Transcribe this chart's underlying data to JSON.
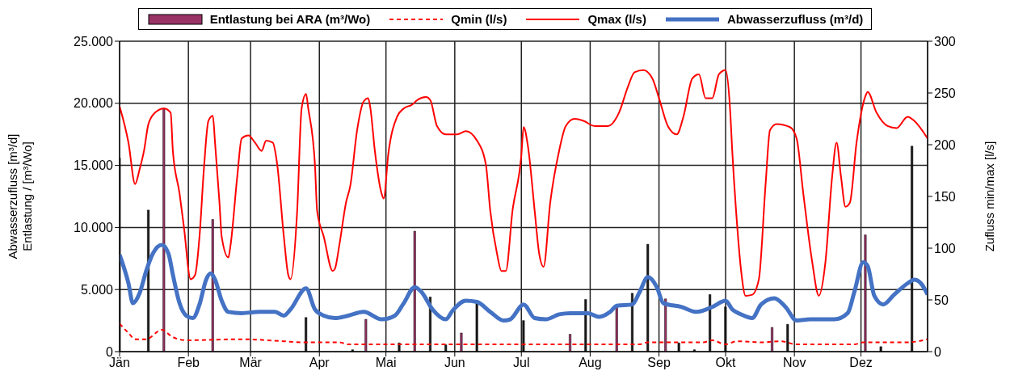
{
  "chart_data": {
    "type": "line",
    "ylabel": "Abwasserzufluss [m³/d]\nEntlastung / [m³/Wo]",
    "y2label": "Zufluss min/max [l/s]",
    "xlim": [
      "--01-01",
      "--12-31"
    ],
    "xticks": [
      {
        "value": "--01-01",
        "label": "Jän"
      },
      {
        "value": "--02-01",
        "label": "Feb"
      },
      {
        "value": "--03-01",
        "label": "Mär"
      },
      {
        "value": "--04-01",
        "label": "Apr"
      },
      {
        "value": "--05-01",
        "label": "Mai"
      },
      {
        "value": "--06-01",
        "label": "Jun"
      },
      {
        "value": "--07-01",
        "label": "Jul"
      },
      {
        "value": "--08-01",
        "label": "Aug"
      },
      {
        "value": "--09-01",
        "label": "Sep"
      },
      {
        "value": "--10-01",
        "label": "Okt"
      },
      {
        "value": "--11-01",
        "label": "Nov"
      },
      {
        "value": "--12-01",
        "label": "Dez"
      }
    ],
    "ylim": [
      0,
      25000
    ],
    "yticks": [
      0,
      {
        "value": 5000,
        "label": "5.000"
      },
      {
        "value": 10000,
        "label": "10.000"
      },
      {
        "value": 15000,
        "label": "15.000"
      },
      {
        "value": 20000,
        "label": "20.000"
      },
      {
        "value": 25000,
        "label": "25.000"
      }
    ],
    "y2lim": [
      0,
      300
    ],
    "y2ticks": [
      0,
      50,
      100,
      150,
      200,
      250,
      300
    ],
    "grid": true,
    "legend": "top",
    "marker": "none",
    "series": [
      {
        "type": "bar",
        "name": "Entlastung bei ARA (m³/Wo)",
        "color": "#993366",
        "x": [
          "--01-01",
          "--01-14",
          "--01-21",
          "--02-12",
          "--03-26",
          "--04-16",
          "--04-22",
          "--05-07",
          "--05-14",
          "--05-21",
          "--05-28",
          "--06-04",
          "--06-11",
          "--07-02",
          "--07-23",
          "--07-30",
          "--08-13",
          "--08-20",
          "--08-27",
          "--09-04",
          "--09-10",
          "--09-17",
          "--09-24",
          "--10-01",
          "--10-22",
          "--10-29",
          "--12-03",
          "--12-10",
          "--12-24"
        ],
        "values": [
          15600,
          11400,
          19600,
          10650,
          2750,
          150,
          2600,
          700,
          9700,
          4400,
          550,
          1500,
          3900,
          2500,
          1400,
          4200,
          3600,
          4700,
          8650,
          4250,
          700,
          150,
          4600,
          3600,
          1950,
          2200,
          9400,
          400,
          16550
        ],
        "colors": [
          "#1a1a1a",
          "#1a1a1a",
          "#993366",
          "#993366",
          "#1a1a1a",
          "#1a1a1a",
          "#993366",
          "#1a1a1a",
          "#993366",
          "#1a1a1a",
          "#1a1a1a",
          "#993366",
          "#1a1a1a",
          "#1a1a1a",
          "#993366",
          "#1a1a1a",
          "#993366",
          "#1a1a1a",
          "#1a1a1a",
          "#993366",
          "#1a1a1a",
          "#1a1a1a",
          "#1a1a1a",
          "#1a1a1a",
          "#993366",
          "#1a1a1a",
          "#993366",
          "#1a1a1a",
          "#1a1a1a"
        ]
      },
      {
        "name": "Qmin (l/s)",
        "color": "#ff0000",
        "line_style": "dashed",
        "axis": "y2",
        "x": [
          "--01-01",
          "--01-05",
          "--01-08",
          "--01-13",
          "--01-20",
          "--01-25",
          "--01-31",
          "--02-25",
          "--03-16",
          "--03-24",
          "--04-10",
          "--04-14",
          "--05-02",
          "--05-31",
          "--06-15",
          "--07-21",
          "--08-23",
          "--08-27",
          "--09-21",
          "--09-25",
          "--10-01",
          "--10-06",
          "--10-17",
          "--10-26",
          "--11-02",
          "--11-28",
          "--12-02",
          "--12-22",
          "--12-31"
        ],
        "values": [
          27,
          18,
          12,
          12,
          21,
          14,
          11,
          12,
          10,
          9,
          9,
          7,
          7,
          7,
          7,
          7,
          7,
          9,
          9,
          11,
          7,
          10,
          9,
          10,
          7,
          7,
          9,
          9,
          12
        ]
      },
      {
        "name": "Qmax (l/s)",
        "color": "#ff0000",
        "line_style": "solid",
        "axis": "y2",
        "x": [
          "--01-01",
          "--01-05",
          "--01-08",
          "--01-10",
          "--01-12",
          "--01-14",
          "--01-17",
          "--01-21",
          "--01-24",
          "--01-25",
          "--01-28",
          "--01-30",
          "--02-02",
          "--02-04",
          "--02-06",
          "--02-08",
          "--02-10",
          "--02-12",
          "--02-13",
          "--02-15",
          "--02-16",
          "--02-19",
          "--02-20",
          "--02-23",
          "--02-25",
          "--02-28",
          "--03-03",
          "--03-06",
          "--03-08",
          "--03-11",
          "--03-13",
          "--03-16",
          "--03-18",
          "--03-19",
          "--03-22",
          "--03-24",
          "--03-26",
          "--03-27",
          "--03-30",
          "--03-31",
          "--04-03",
          "--04-07",
          "--04-08",
          "--04-10",
          "--04-13",
          "--04-15",
          "--04-18",
          "--04-21",
          "--04-23",
          "--04-24",
          "--04-26",
          "--04-29",
          "--04-30",
          "--05-02",
          "--05-06",
          "--05-09",
          "--05-13",
          "--05-15",
          "--05-19",
          "--05-21",
          "--05-24",
          "--05-28",
          "--06-02",
          "--06-06",
          "--06-11",
          "--06-15",
          "--06-17",
          "--06-20",
          "--06-22",
          "--06-24",
          "--06-27",
          "--07-01",
          "--07-02",
          "--07-04",
          "--07-07",
          "--07-09",
          "--07-11",
          "--07-14",
          "--07-18",
          "--07-21",
          "--07-25",
          "--07-29",
          "--08-03",
          "--08-09",
          "--08-14",
          "--08-18",
          "--08-21",
          "--08-25",
          "--08-29",
          "--09-01",
          "--09-05",
          "--09-09",
          "--09-12",
          "--09-16",
          "--09-19",
          "--09-22",
          "--09-25",
          "--09-28",
          "--10-01",
          "--10-03",
          "--10-04",
          "--10-06",
          "--10-08",
          "--10-10",
          "--10-13",
          "--10-16",
          "--10-19",
          "--10-21",
          "--10-24",
          "--10-30",
          "--11-02",
          "--11-05",
          "--11-09",
          "--11-12",
          "--11-15",
          "--11-18",
          "--11-20",
          "--11-22",
          "--11-24",
          "--11-26",
          "--11-29",
          "--12-03",
          "--12-04",
          "--12-08",
          "--12-13",
          "--12-17",
          "--12-22",
          "--12-25",
          "--12-31"
        ],
        "values": [
          237,
          202,
          162,
          176,
          194,
          220,
          231,
          235,
          231,
          194,
          153,
          120,
          70,
          74,
          111,
          177,
          223,
          228,
          202,
          144,
          111,
          91,
          103,
          169,
          206,
          209,
          202,
          194,
          204,
          202,
          181,
          111,
          74,
          70,
          136,
          235,
          249,
          235,
          181,
          136,
          111,
          78,
          80,
          103,
          144,
          161,
          214,
          242,
          245,
          235,
          194,
          153,
          148,
          190,
          227,
          235,
          239,
          243,
          246,
          243,
          218,
          210,
          210,
          213,
          204,
          181,
          136,
          95,
          78,
          78,
          136,
          190,
          217,
          198,
          136,
          95,
          82,
          144,
          194,
          218,
          225,
          223,
          218,
          218,
          231,
          256,
          270,
          272,
          264,
          245,
          218,
          210,
          227,
          264,
          268,
          245,
          245,
          268,
          272,
          235,
          194,
          128,
          78,
          54,
          55,
          70,
          161,
          214,
          220,
          217,
          206,
          153,
          87,
          54,
          87,
          169,
          202,
          169,
          140,
          144,
          202,
          247,
          251,
          231,
          218,
          216,
          227,
          223,
          206
        ]
      },
      {
        "name": "Abwasserzufluss (m³/d)",
        "color": "#4472c4",
        "line_style": "solid",
        "x": [
          "--01-01",
          "--01-05",
          "--01-07",
          "--01-10",
          "--01-13",
          "--01-16",
          "--01-20",
          "--01-23",
          "--01-25",
          "--01-28",
          "--01-31",
          "--02-03",
          "--02-06",
          "--02-09",
          "--02-11",
          "--02-13",
          "--02-16",
          "--02-19",
          "--02-25",
          "--03-05",
          "--03-12",
          "--03-16",
          "--03-19",
          "--03-26",
          "--03-30",
          "--04-03",
          "--04-08",
          "--04-14",
          "--04-21",
          "--04-29",
          "--05-05",
          "--05-09",
          "--05-14",
          "--05-17",
          "--05-22",
          "--05-28",
          "--05-31",
          "--06-06",
          "--06-11",
          "--06-17",
          "--06-23",
          "--06-26",
          "--07-02",
          "--07-07",
          "--07-12",
          "--07-18",
          "--07-23",
          "--07-31",
          "--08-05",
          "--08-10",
          "--08-13",
          "--08-20",
          "--08-23",
          "--08-27",
          "--08-31",
          "--09-03",
          "--09-11",
          "--09-18",
          "--09-25",
          "--10-01",
          "--10-04",
          "--10-08",
          "--10-13",
          "--10-17",
          "--10-23",
          "--10-28",
          "--11-02",
          "--11-08",
          "--11-19",
          "--11-25",
          "--11-28",
          "--12-02",
          "--12-04",
          "--12-07",
          "--12-11",
          "--12-16",
          "--12-22",
          "--12-25",
          "--12-28",
          "--12-31"
        ],
        "values": [
          7800,
          5500,
          3900,
          4700,
          6500,
          7900,
          8600,
          7900,
          6200,
          3900,
          2900,
          2700,
          3800,
          5800,
          6300,
          5800,
          4100,
          3200,
          3100,
          3200,
          3200,
          2900,
          3400,
          5100,
          3400,
          2900,
          2700,
          2900,
          3200,
          2600,
          2900,
          3900,
          5200,
          4800,
          3400,
          2600,
          3300,
          4100,
          4000,
          3200,
          2500,
          2600,
          3800,
          2700,
          2600,
          3000,
          3100,
          3100,
          2800,
          3200,
          3700,
          3800,
          4700,
          6000,
          5200,
          3900,
          3600,
          3200,
          3600,
          4100,
          3400,
          3000,
          2700,
          3800,
          4300,
          3600,
          2500,
          2600,
          2600,
          3100,
          4800,
          7200,
          6900,
          4500,
          3800,
          4600,
          5500,
          5800,
          5500,
          4600
        ]
      }
    ]
  }
}
